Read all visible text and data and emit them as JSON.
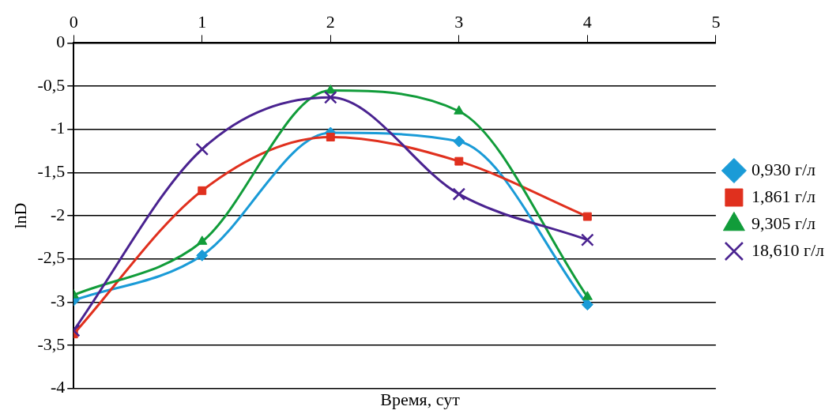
{
  "chart_data": {
    "type": "line",
    "xlabel": "Время, сут",
    "ylabel": "lnD",
    "xlim": [
      0,
      5
    ],
    "xticks": [
      0,
      1,
      2,
      3,
      4,
      5
    ],
    "ylim": [
      -4,
      0
    ],
    "yticks": [
      0,
      {
        "value": -0.5,
        "label": "-0,5"
      },
      -1,
      {
        "value": -1.5,
        "label": "-1,5"
      },
      -2,
      {
        "value": -2.5,
        "label": "-2,5"
      },
      -3,
      {
        "value": -3.5,
        "label": "-3,5"
      },
      -4
    ],
    "x": [
      0,
      1,
      2,
      3,
      4
    ],
    "grid": "y",
    "legend": "right",
    "series": [
      {
        "name": "0,930 г/л",
        "color": "#1a9bd7",
        "marker": "diamond",
        "values": [
          -2.98,
          -2.46,
          -1.04,
          -1.14,
          -3.03
        ]
      },
      {
        "name": "1,861 г/л",
        "color": "#e0301e",
        "marker": "square",
        "values": [
          -3.37,
          -1.71,
          -1.09,
          -1.37,
          -2.01
        ]
      },
      {
        "name": "9,305 г/л",
        "color": "#119c3a",
        "marker": "triangle",
        "values": [
          -2.92,
          -2.3,
          -0.55,
          -0.79,
          -2.94
        ]
      },
      {
        "name": "18,610 г/л",
        "color": "#4a2390",
        "marker": "cross",
        "values": [
          -3.33,
          -1.23,
          -0.63,
          -1.75,
          -2.28
        ]
      }
    ]
  }
}
